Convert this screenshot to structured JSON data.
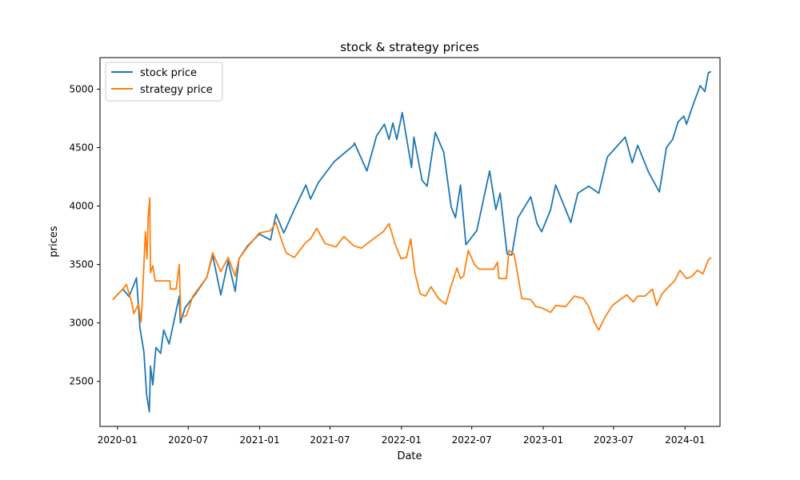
{
  "chart_data": {
    "type": "line",
    "title": "stock & strategy prices",
    "xlabel": "Date",
    "ylabel": "prices",
    "xlim": [
      "2019-11-17",
      "2024-03-31"
    ],
    "ylim": [
      2115,
      5270
    ],
    "x_ticks": [
      "2020-01",
      "2020-07",
      "2021-01",
      "2021-07",
      "2022-01",
      "2022-07",
      "2023-01",
      "2023-07",
      "2024-01"
    ],
    "y_ticks": [
      2500,
      3000,
      3500,
      4000,
      4500,
      5000
    ],
    "grid": false,
    "legend": "top-left",
    "series": [
      {
        "name": "stock price",
        "color": "#1f77b4",
        "points": [
          [
            "2019-12-20",
            3200
          ],
          [
            "2020-01-15",
            3290
          ],
          [
            "2020-01-31",
            3225
          ],
          [
            "2020-02-19",
            3385
          ],
          [
            "2020-02-28",
            2955
          ],
          [
            "2020-03-09",
            2750
          ],
          [
            "2020-03-16",
            2385
          ],
          [
            "2020-03-23",
            2240
          ],
          [
            "2020-03-26",
            2630
          ],
          [
            "2020-04-01",
            2470
          ],
          [
            "2020-04-09",
            2790
          ],
          [
            "2020-04-21",
            2740
          ],
          [
            "2020-04-29",
            2940
          ],
          [
            "2020-05-13",
            2820
          ],
          [
            "2020-05-27",
            3040
          ],
          [
            "2020-06-08",
            3230
          ],
          [
            "2020-06-11",
            3000
          ],
          [
            "2020-06-23",
            3130
          ],
          [
            "2020-07-20",
            3250
          ],
          [
            "2020-08-18",
            3390
          ],
          [
            "2020-09-02",
            3580
          ],
          [
            "2020-09-23",
            3240
          ],
          [
            "2020-10-12",
            3530
          ],
          [
            "2020-10-30",
            3270
          ],
          [
            "2020-11-09",
            3550
          ],
          [
            "2020-12-01",
            3660
          ],
          [
            "2020-12-31",
            3760
          ],
          [
            "2021-01-29",
            3710
          ],
          [
            "2021-02-12",
            3930
          ],
          [
            "2021-03-04",
            3770
          ],
          [
            "2021-03-31",
            3970
          ],
          [
            "2021-04-30",
            4180
          ],
          [
            "2021-05-12",
            4060
          ],
          [
            "2021-06-01",
            4200
          ],
          [
            "2021-07-12",
            4380
          ],
          [
            "2021-08-31",
            4520
          ],
          [
            "2021-09-02",
            4540
          ],
          [
            "2021-10-04",
            4300
          ],
          [
            "2021-10-29",
            4600
          ],
          [
            "2021-11-18",
            4700
          ],
          [
            "2021-11-30",
            4570
          ],
          [
            "2021-12-10",
            4710
          ],
          [
            "2021-12-20",
            4570
          ],
          [
            "2022-01-03",
            4800
          ],
          [
            "2022-01-27",
            4330
          ],
          [
            "2022-02-02",
            4590
          ],
          [
            "2022-02-23",
            4220
          ],
          [
            "2022-03-08",
            4170
          ],
          [
            "2022-03-29",
            4630
          ],
          [
            "2022-04-20",
            4460
          ],
          [
            "2022-05-09",
            3990
          ],
          [
            "2022-05-20",
            3900
          ],
          [
            "2022-06-02",
            4180
          ],
          [
            "2022-06-16",
            3670
          ],
          [
            "2022-07-14",
            3790
          ],
          [
            "2022-08-16",
            4300
          ],
          [
            "2022-09-01",
            3970
          ],
          [
            "2022-09-12",
            4110
          ],
          [
            "2022-09-30",
            3590
          ],
          [
            "2022-10-12",
            3580
          ],
          [
            "2022-10-28",
            3900
          ],
          [
            "2022-11-30",
            4080
          ],
          [
            "2022-12-16",
            3850
          ],
          [
            "2022-12-28",
            3780
          ],
          [
            "2023-01-20",
            3970
          ],
          [
            "2023-02-02",
            4180
          ],
          [
            "2023-03-13",
            3860
          ],
          [
            "2023-03-31",
            4110
          ],
          [
            "2023-04-28",
            4170
          ],
          [
            "2023-05-24",
            4110
          ],
          [
            "2023-06-15",
            4420
          ],
          [
            "2023-07-31",
            4590
          ],
          [
            "2023-08-18",
            4370
          ],
          [
            "2023-09-01",
            4520
          ],
          [
            "2023-09-29",
            4290
          ],
          [
            "2023-10-27",
            4120
          ],
          [
            "2023-11-14",
            4500
          ],
          [
            "2023-11-30",
            4570
          ],
          [
            "2023-12-14",
            4720
          ],
          [
            "2023-12-29",
            4770
          ],
          [
            "2024-01-05",
            4700
          ],
          [
            "2024-01-19",
            4840
          ],
          [
            "2024-02-09",
            5030
          ],
          [
            "2024-02-21",
            4980
          ],
          [
            "2024-03-01",
            5140
          ],
          [
            "2024-03-08",
            5150
          ]
        ]
      },
      {
        "name": "strategy price",
        "color": "#ff7f0e",
        "points": [
          [
            "2019-12-20",
            3200
          ],
          [
            "2020-01-15",
            3290
          ],
          [
            "2020-01-24",
            3330
          ],
          [
            "2020-02-07",
            3170
          ],
          [
            "2020-02-12",
            3080
          ],
          [
            "2020-02-24",
            3160
          ],
          [
            "2020-03-02",
            3010
          ],
          [
            "2020-03-06",
            3280
          ],
          [
            "2020-03-13",
            3780
          ],
          [
            "2020-03-17",
            3550
          ],
          [
            "2020-03-20",
            3900
          ],
          [
            "2020-03-24",
            4070
          ],
          [
            "2020-03-26",
            3430
          ],
          [
            "2020-04-01",
            3490
          ],
          [
            "2020-04-07",
            3360
          ],
          [
            "2020-05-15",
            3360
          ],
          [
            "2020-05-16",
            3290
          ],
          [
            "2020-05-31",
            3290
          ],
          [
            "2020-06-08",
            3500
          ],
          [
            "2020-06-12",
            3050
          ],
          [
            "2020-06-26",
            3060
          ],
          [
            "2020-07-13",
            3230
          ],
          [
            "2020-08-18",
            3390
          ],
          [
            "2020-09-02",
            3600
          ],
          [
            "2020-09-23",
            3440
          ],
          [
            "2020-10-12",
            3560
          ],
          [
            "2020-10-30",
            3400
          ],
          [
            "2020-11-09",
            3550
          ],
          [
            "2020-12-01",
            3650
          ],
          [
            "2020-12-31",
            3770
          ],
          [
            "2021-01-29",
            3790
          ],
          [
            "2021-02-12",
            3860
          ],
          [
            "2021-02-25",
            3720
          ],
          [
            "2021-03-10",
            3600
          ],
          [
            "2021-03-31",
            3560
          ],
          [
            "2021-04-30",
            3690
          ],
          [
            "2021-05-12",
            3720
          ],
          [
            "2021-05-28",
            3810
          ],
          [
            "2021-06-18",
            3680
          ],
          [
            "2021-07-16",
            3650
          ],
          [
            "2021-08-06",
            3740
          ],
          [
            "2021-08-31",
            3660
          ],
          [
            "2021-09-20",
            3640
          ],
          [
            "2021-10-13",
            3700
          ],
          [
            "2021-10-29",
            3740
          ],
          [
            "2021-11-15",
            3780
          ],
          [
            "2021-11-30",
            3850
          ],
          [
            "2021-12-15",
            3680
          ],
          [
            "2021-12-31",
            3550
          ],
          [
            "2022-01-14",
            3560
          ],
          [
            "2022-01-25",
            3720
          ],
          [
            "2022-02-04",
            3440
          ],
          [
            "2022-02-18",
            3250
          ],
          [
            "2022-03-04",
            3230
          ],
          [
            "2022-03-18",
            3310
          ],
          [
            "2022-04-06",
            3210
          ],
          [
            "2022-04-25",
            3160
          ],
          [
            "2022-05-10",
            3330
          ],
          [
            "2022-05-24",
            3470
          ],
          [
            "2022-06-02",
            3380
          ],
          [
            "2022-06-10",
            3400
          ],
          [
            "2022-06-22",
            3620
          ],
          [
            "2022-07-08",
            3500
          ],
          [
            "2022-07-20",
            3460
          ],
          [
            "2022-08-26",
            3460
          ],
          [
            "2022-09-05",
            3520
          ],
          [
            "2022-09-09",
            3380
          ],
          [
            "2022-09-28",
            3380
          ],
          [
            "2022-10-05",
            3620
          ],
          [
            "2022-10-18",
            3590
          ],
          [
            "2022-11-07",
            3210
          ],
          [
            "2022-11-30",
            3200
          ],
          [
            "2022-12-13",
            3140
          ],
          [
            "2022-12-28",
            3130
          ],
          [
            "2023-01-20",
            3090
          ],
          [
            "2023-02-02",
            3150
          ],
          [
            "2023-02-28",
            3140
          ],
          [
            "2023-03-22",
            3230
          ],
          [
            "2023-04-14",
            3210
          ],
          [
            "2023-04-28",
            3140
          ],
          [
            "2023-05-12",
            3010
          ],
          [
            "2023-05-24",
            2940
          ],
          [
            "2023-06-09",
            3050
          ],
          [
            "2023-06-28",
            3150
          ],
          [
            "2023-07-18",
            3200
          ],
          [
            "2023-08-04",
            3240
          ],
          [
            "2023-08-21",
            3180
          ],
          [
            "2023-09-01",
            3230
          ],
          [
            "2023-09-20",
            3230
          ],
          [
            "2023-10-09",
            3290
          ],
          [
            "2023-10-20",
            3150
          ],
          [
            "2023-11-03",
            3250
          ],
          [
            "2023-11-20",
            3310
          ],
          [
            "2023-12-05",
            3360
          ],
          [
            "2023-12-19",
            3450
          ],
          [
            "2024-01-05",
            3380
          ],
          [
            "2024-01-19",
            3400
          ],
          [
            "2024-02-02",
            3450
          ],
          [
            "2024-02-16",
            3420
          ],
          [
            "2024-03-01",
            3540
          ],
          [
            "2024-03-08",
            3560
          ]
        ]
      }
    ]
  }
}
